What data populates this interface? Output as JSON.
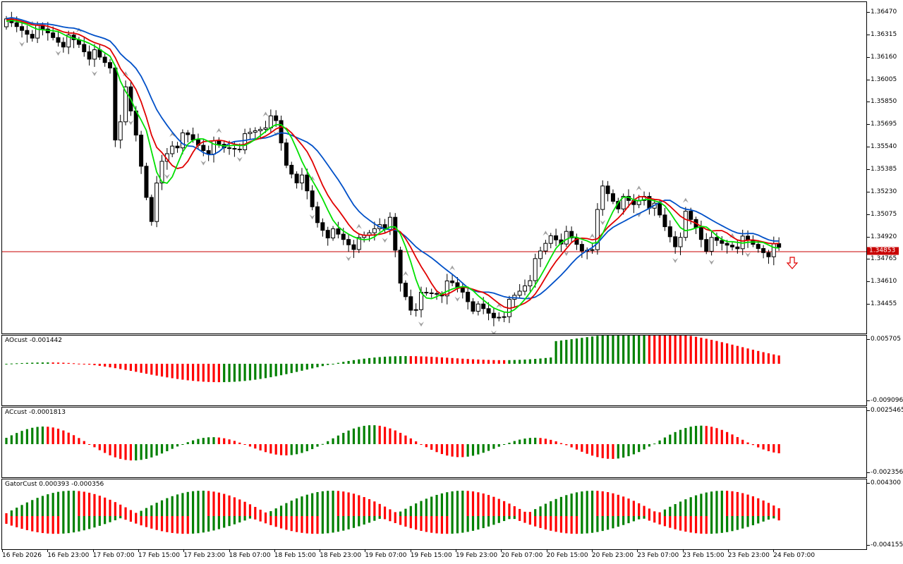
{
  "main_chart": {
    "price_scale": [
      "1.36470",
      "1.36315",
      "1.36160",
      "1.36005",
      "1.35850",
      "1.35695",
      "1.35540",
      "1.35385",
      "1.35230",
      "1.35075",
      "1.34920",
      "1.34765",
      "1.34610",
      "1.34455"
    ],
    "current_price": "1.34853",
    "colors": {
      "bull_body": "#ffffff",
      "bear_body": "#000000",
      "ma_blue": "#0050c8",
      "ma_red": "#e00000",
      "ma_green": "#00e000",
      "price_line": "#c80000",
      "fractal": "#a0a0a0",
      "signal_arrow": "#e00000"
    },
    "signal": "down-arrow-icon"
  },
  "ao_panel": {
    "label": "AOcust -0.001442",
    "scale": [
      "0.005705",
      "-0.009096"
    ],
    "colors": {
      "up": "#008000",
      "down": "#ff0000"
    }
  },
  "ac_panel": {
    "label": "ACcust -0.0001813",
    "scale": [
      "0.0025465",
      "-0.0023561"
    ],
    "colors": {
      "up": "#008000",
      "down": "#ff0000"
    }
  },
  "gator_panel": {
    "label": "GatorCust 0.000393 -0.000356",
    "scale": [
      "0.004300",
      "-0.004155"
    ],
    "colors": {
      "up": "#008000",
      "down": "#ff0000"
    }
  },
  "time_axis": [
    "16 Feb 2026",
    "16 Feb 23:00",
    "17 Feb 07:00",
    "17 Feb 15:00",
    "17 Feb 23:00",
    "18 Feb 07:00",
    "18 Feb 15:00",
    "18 Feb 23:00",
    "19 Feb 07:00",
    "19 Feb 15:00",
    "19 Feb 23:00",
    "20 Feb 07:00",
    "20 Feb 15:00",
    "20 Feb 23:00",
    "23 Feb 07:00",
    "23 Feb 15:00",
    "23 Feb 23:00",
    "24 Feb 07:00"
  ]
}
